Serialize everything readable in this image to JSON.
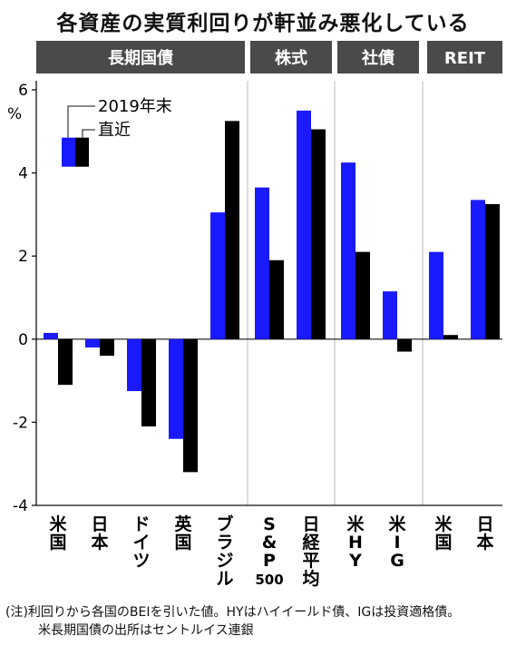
{
  "title": "各資産の実質利回りが軒並み悪化している",
  "note": {
    "line1": "(注)利回りから各国のBEIを引いた値。HYはハイイールド債、IGは投資適格債。",
    "line2": "米長期国債の出所はセントルイス連銀"
  },
  "colors": {
    "recent": "#000000",
    "end2019": "#1a1aff",
    "header_bg": "#4a4a4a"
  },
  "chart_data": {
    "type": "bar",
    "y_unit": "%",
    "ylim": [
      -4,
      6
    ],
    "yticks": [
      "6",
      "4",
      "2",
      "0",
      "-2",
      "-4"
    ],
    "groups": [
      {
        "label": "長期国債",
        "categories": [
          "米国",
          "日本",
          "ドイツ",
          "英国",
          "ブラジル"
        ]
      },
      {
        "label": "株式",
        "categories": [
          "S&P500",
          "日経平均"
        ]
      },
      {
        "label": "社債",
        "categories": [
          "米HY",
          "米IG"
        ]
      },
      {
        "label": "REIT",
        "categories": [
          "米国",
          "日本"
        ]
      }
    ],
    "categories": [
      "米国",
      "日本",
      "ドイツ",
      "英国",
      "ブラジル",
      "S&P500",
      "日経平均",
      "米HY",
      "米IG",
      "米国",
      "日本"
    ],
    "category_lines": [
      [
        "米",
        "国"
      ],
      [
        "日",
        "本"
      ],
      [
        "ド",
        "イ",
        "ツ"
      ],
      [
        "英",
        "国"
      ],
      [
        "ブ",
        "ラ",
        "ジ",
        "ル"
      ],
      [
        "S",
        "&",
        "P",
        "500"
      ],
      [
        "日",
        "経",
        "平",
        "均"
      ],
      [
        "米",
        "H",
        "Y"
      ],
      [
        "米",
        "I",
        "G"
      ],
      [
        "米",
        "国"
      ],
      [
        "日",
        "本"
      ]
    ],
    "series": [
      {
        "name": "2019年末",
        "values": [
          0.15,
          -0.2,
          -1.25,
          -2.4,
          3.05,
          3.65,
          5.5,
          4.25,
          1.15,
          2.1,
          3.35
        ]
      },
      {
        "name": "直近",
        "values": [
          -1.1,
          -0.4,
          -2.1,
          -3.2,
          5.25,
          1.9,
          5.05,
          2.1,
          -0.3,
          0.1,
          3.25
        ]
      }
    ]
  }
}
